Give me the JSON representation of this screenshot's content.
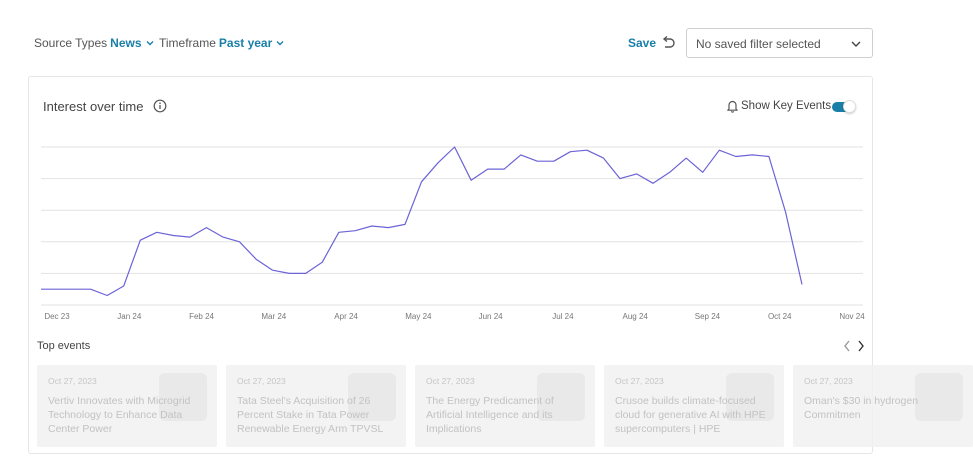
{
  "filters": {
    "source_label": "Source Types",
    "source_value": "News",
    "timeframe_label": "Timeframe",
    "timeframe_value": "Past year"
  },
  "save_label": "Save",
  "saved_filter_placeholder": "No saved filter selected",
  "card": {
    "title": "Interest over time",
    "key_events_label": "Show Key Events",
    "key_events_on": true
  },
  "colors": {
    "accent": "#1a7fa8",
    "line": "#6b63d6",
    "grid": "#e2e2e2"
  },
  "chart_data": {
    "type": "line",
    "x_tick_labels": [
      "Dec 23",
      "Jan 24",
      "Feb 24",
      "Mar 24",
      "Apr 24",
      "May 24",
      "Jun 24",
      "Jul 24",
      "Aug 24",
      "Sep 24",
      "Oct 24",
      "Nov 24"
    ],
    "ylim": [
      0,
      100
    ],
    "grid": true,
    "series": [
      {
        "values": [
          10,
          10,
          10,
          10,
          6,
          12,
          41,
          46,
          44,
          43,
          49,
          43,
          40,
          29,
          22,
          20,
          20,
          27,
          46,
          47,
          50,
          49,
          51,
          78,
          90,
          100,
          79,
          86,
          86,
          95,
          91,
          91,
          97,
          98,
          93,
          80,
          83,
          77,
          84,
          93,
          84,
          98,
          94,
          95,
          94,
          59,
          13
        ]
      }
    ]
  },
  "top_events": {
    "title": "Top events",
    "items": [
      {
        "date": "Oct 27, 2023",
        "title": "Vertiv Innovates with Microgrid Technology to Enhance Data Center Power"
      },
      {
        "date": "Oct 27, 2023",
        "title": "Tata Steel's Acquisition of 26 Percent Stake in Tata Power Renewable Energy Arm TPVSL"
      },
      {
        "date": "Oct 27, 2023",
        "title": "The Energy Predicament of Artificial Intelligence and its Implications"
      },
      {
        "date": "Oct 27, 2023",
        "title": "Crusoe builds climate-focused cloud for generative AI with HPE supercomputers | HPE"
      },
      {
        "date": "Oct 27, 2023",
        "title": "Oman's $30 in hydrogen Commitmen"
      }
    ]
  }
}
